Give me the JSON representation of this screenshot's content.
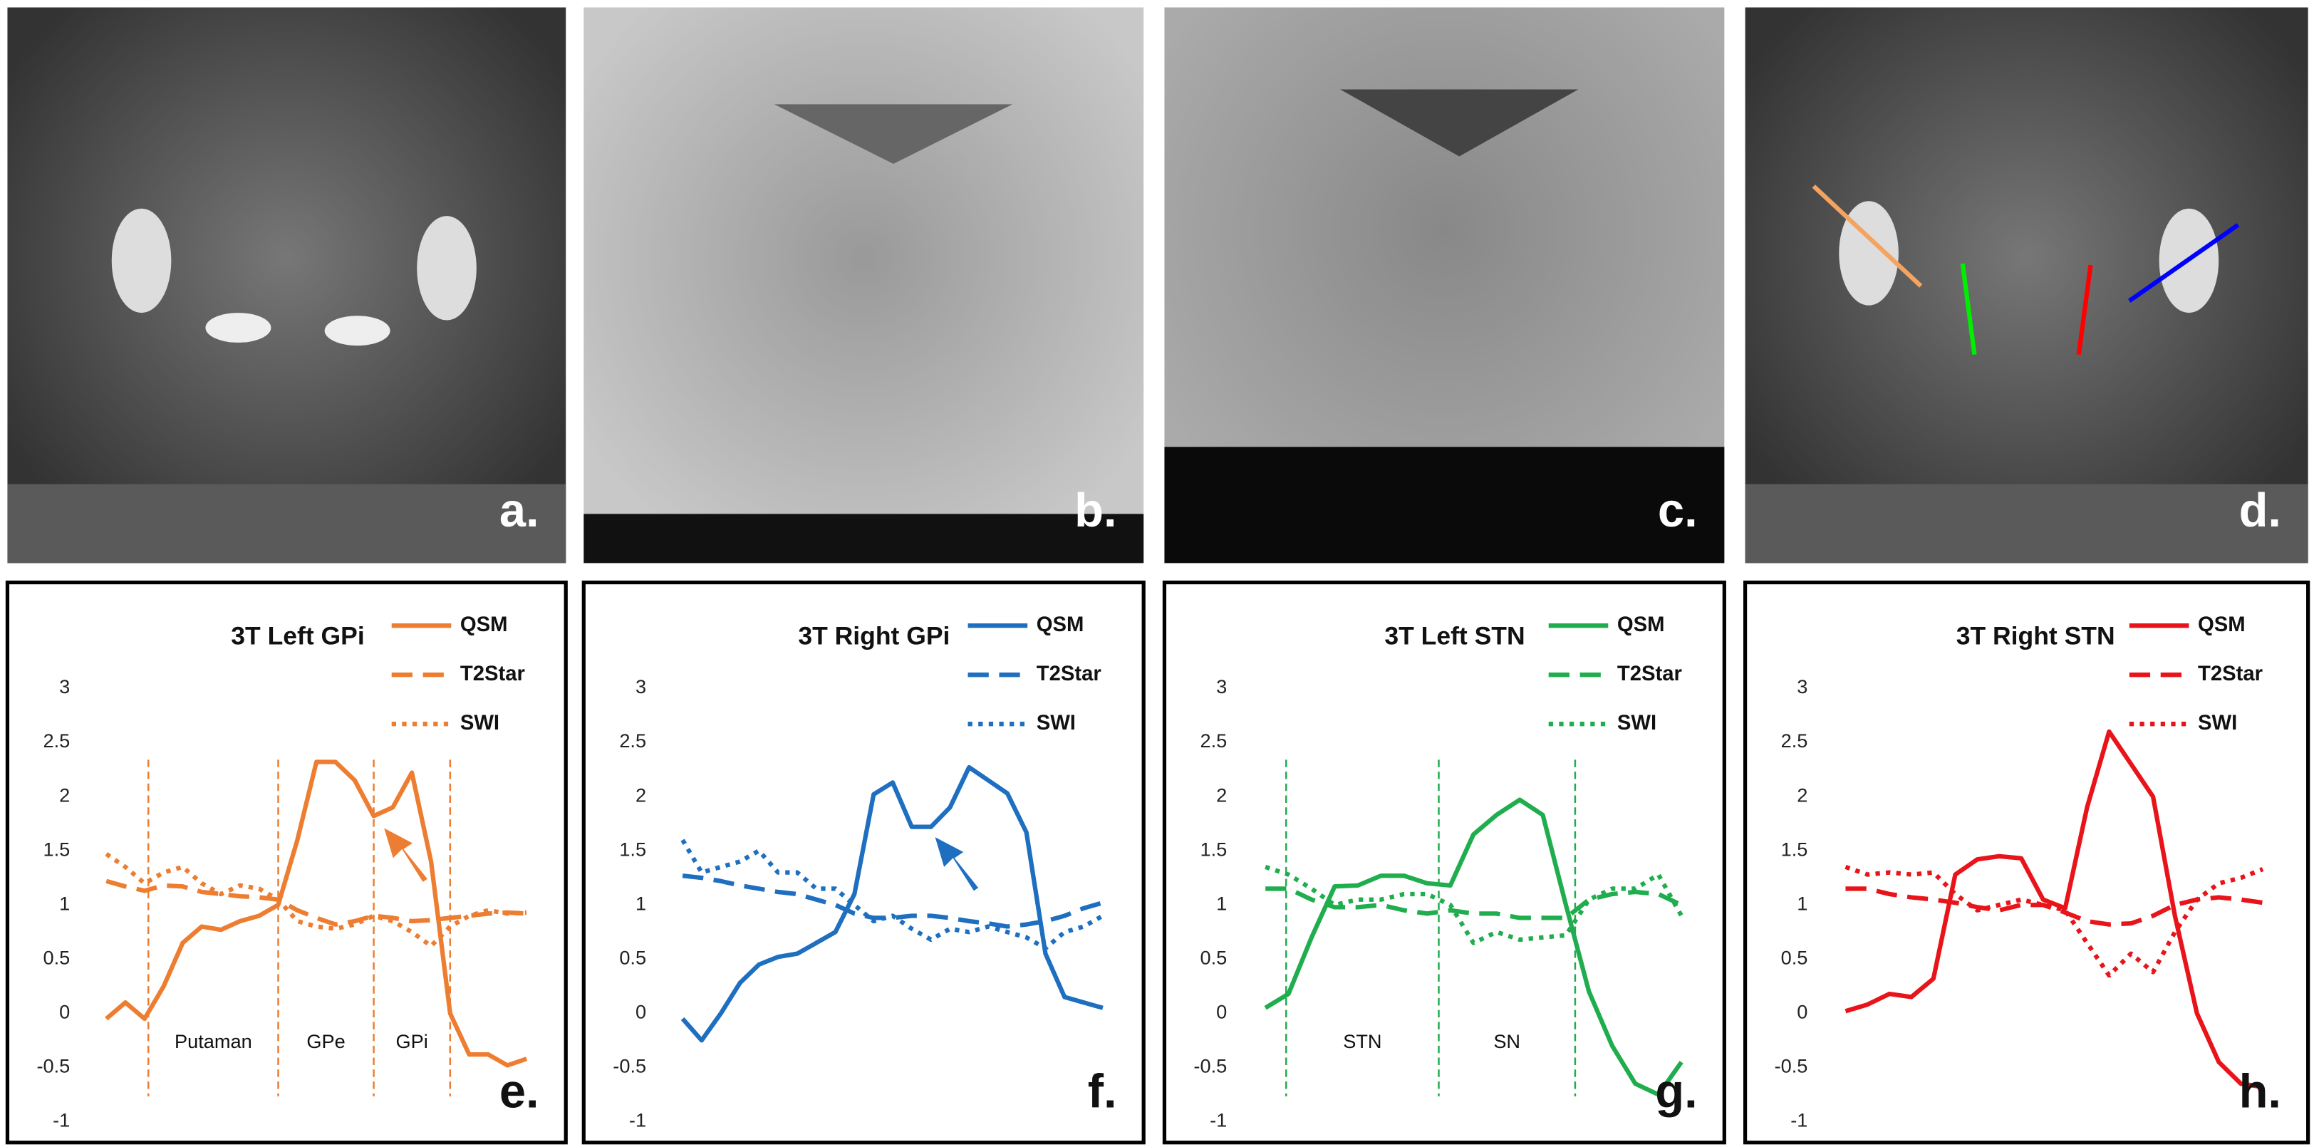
{
  "images": [
    {
      "label": "a."
    },
    {
      "label": "b."
    },
    {
      "label": "c."
    },
    {
      "label": "d."
    }
  ],
  "chart_data": [
    {
      "type": "line",
      "title": "3T Left GPi",
      "panel_label": "e.",
      "color": "#ed7d31",
      "x": [
        0,
        1,
        2,
        3,
        4,
        5,
        6,
        7,
        8,
        9,
        10,
        11,
        12,
        13,
        14,
        15,
        16,
        17,
        18,
        19,
        20,
        21,
        22
      ],
      "xlim": [
        -0.5,
        22.5
      ],
      "ylim": [
        -1,
        3
      ],
      "yticks": [
        3,
        2.5,
        2,
        1.5,
        1,
        0.5,
        0,
        -0.5,
        -1
      ],
      "vlines": [
        2.2,
        9,
        14,
        18
      ],
      "region_labels": [
        "Putaman",
        "GPe",
        "GPi"
      ],
      "series": [
        {
          "name": "QSM",
          "linestyle": "solid",
          "values": [
            -0.05,
            0.1,
            -0.05,
            0.25,
            0.65,
            0.8,
            0.77,
            0.85,
            0.9,
            1.0,
            1.6,
            2.32,
            2.32,
            2.15,
            1.82,
            1.9,
            2.22,
            1.4,
            0.0,
            -0.38,
            -0.38,
            -0.48,
            -0.42
          ]
        },
        {
          "name": "T2Star",
          "linestyle": "dashed",
          "values": [
            1.22,
            1.17,
            1.13,
            1.18,
            1.17,
            1.12,
            1.1,
            1.08,
            1.07,
            1.05,
            0.95,
            0.88,
            0.82,
            0.85,
            0.9,
            0.88,
            0.85,
            0.86,
            0.88,
            0.9,
            0.92,
            0.93,
            0.92
          ]
        },
        {
          "name": "SWI",
          "linestyle": "dotted",
          "values": [
            1.47,
            1.35,
            1.2,
            1.3,
            1.35,
            1.2,
            1.1,
            1.18,
            1.15,
            1.05,
            0.85,
            0.8,
            0.78,
            0.82,
            0.9,
            0.85,
            0.75,
            0.62,
            0.8,
            0.9,
            0.95,
            0.92,
            0.93
          ]
        }
      ]
    },
    {
      "type": "line",
      "title": "3T Right GPi",
      "panel_label": "f.",
      "color": "#1f6fc0",
      "x": [
        0,
        1,
        2,
        3,
        4,
        5,
        6,
        7,
        8,
        9,
        10,
        11,
        12,
        13,
        14,
        15,
        16,
        17,
        18,
        19,
        20,
        21,
        22
      ],
      "xlim": [
        -0.5,
        22.5
      ],
      "ylim": [
        -1,
        3
      ],
      "yticks": [
        3,
        2.5,
        2,
        1.5,
        1,
        0.5,
        0,
        -0.5,
        -1
      ],
      "series": [
        {
          "name": "QSM",
          "linestyle": "solid",
          "values": [
            -0.05,
            -0.25,
            0.0,
            0.28,
            0.45,
            0.52,
            0.55,
            0.65,
            0.75,
            1.1,
            2.02,
            2.13,
            1.72,
            1.72,
            1.9,
            2.27,
            2.15,
            2.03,
            1.67,
            0.55,
            0.15,
            0.1,
            0.05
          ]
        },
        {
          "name": "T2Star",
          "linestyle": "dashed",
          "values": [
            1.27,
            1.25,
            1.22,
            1.18,
            1.15,
            1.12,
            1.1,
            1.05,
            1.0,
            0.92,
            0.88,
            0.88,
            0.9,
            0.9,
            0.88,
            0.85,
            0.83,
            0.8,
            0.82,
            0.85,
            0.9,
            0.97,
            1.02
          ]
        },
        {
          "name": "SWI",
          "linestyle": "dotted",
          "values": [
            1.6,
            1.3,
            1.35,
            1.4,
            1.5,
            1.3,
            1.3,
            1.15,
            1.15,
            1.0,
            0.85,
            0.9,
            0.78,
            0.68,
            0.78,
            0.75,
            0.8,
            0.75,
            0.7,
            0.6,
            0.75,
            0.8,
            0.9
          ]
        }
      ]
    },
    {
      "type": "line",
      "title": "3T Left STN",
      "panel_label": "g.",
      "color": "#20ad4e",
      "x": [
        0,
        1,
        2,
        3,
        4,
        5,
        6,
        7,
        8,
        9,
        10,
        11,
        12,
        13,
        14,
        15,
        16,
        17,
        18
      ],
      "xlim": [
        -0.5,
        18.5
      ],
      "ylim": [
        -1,
        3
      ],
      "yticks": [
        3,
        2.5,
        2,
        1.5,
        1,
        0.5,
        0,
        -0.5,
        -1
      ],
      "vlines": [
        0.9,
        7.5,
        13.4
      ],
      "region_labels": [
        "STN",
        "SN"
      ],
      "series": [
        {
          "name": "QSM",
          "linestyle": "solid",
          "values": [
            0.05,
            0.18,
            0.7,
            1.17,
            1.18,
            1.27,
            1.27,
            1.2,
            1.18,
            1.65,
            1.83,
            1.97,
            1.83,
            1.0,
            0.2,
            -0.3,
            -0.65,
            -0.75,
            -0.45
          ]
        },
        {
          "name": "T2Star",
          "linestyle": "dashed",
          "values": [
            1.15,
            1.15,
            1.05,
            0.98,
            0.98,
            1.0,
            0.95,
            0.92,
            0.95,
            0.92,
            0.92,
            0.88,
            0.88,
            0.88,
            1.05,
            1.1,
            1.12,
            1.1,
            1.0
          ]
        },
        {
          "name": "SWI",
          "linestyle": "dotted",
          "values": [
            1.35,
            1.28,
            1.15,
            1.0,
            1.05,
            1.05,
            1.1,
            1.1,
            1.0,
            0.65,
            0.75,
            0.68,
            0.7,
            0.72,
            1.05,
            1.15,
            1.15,
            1.28,
            0.9
          ]
        }
      ]
    },
    {
      "type": "line",
      "title": "3T Right STN",
      "panel_label": "h.",
      "color": "#e8141a",
      "x": [
        0,
        1,
        2,
        3,
        4,
        5,
        6,
        7,
        8,
        9,
        10,
        11,
        12,
        13,
        14,
        15,
        16,
        17,
        18,
        19
      ],
      "xlim": [
        -0.5,
        19.5
      ],
      "ylim": [
        -1,
        3
      ],
      "yticks": [
        3,
        2.5,
        2,
        1.5,
        1,
        0.5,
        0,
        -0.5,
        -1
      ],
      "series": [
        {
          "name": "QSM",
          "linestyle": "solid",
          "values": [
            0.02,
            0.08,
            0.18,
            0.15,
            0.32,
            1.28,
            1.42,
            1.45,
            1.43,
            1.05,
            0.97,
            1.9,
            2.6,
            2.3,
            2.0,
            0.9,
            0.0,
            -0.45,
            -0.65,
            -0.68
          ]
        },
        {
          "name": "T2Star",
          "linestyle": "dashed",
          "values": [
            1.15,
            1.15,
            1.1,
            1.07,
            1.05,
            1.02,
            0.98,
            0.95,
            1.0,
            1.0,
            0.93,
            0.85,
            0.82,
            0.83,
            0.9,
            1.0,
            1.05,
            1.07,
            1.05,
            1.02
          ]
        },
        {
          "name": "SWI",
          "linestyle": "dotted",
          "values": [
            1.35,
            1.28,
            1.3,
            1.28,
            1.3,
            1.1,
            0.95,
            1.0,
            1.05,
            1.0,
            0.95,
            0.65,
            0.35,
            0.55,
            0.38,
            0.75,
            1.05,
            1.2,
            1.25,
            1.33
          ]
        }
      ]
    }
  ]
}
